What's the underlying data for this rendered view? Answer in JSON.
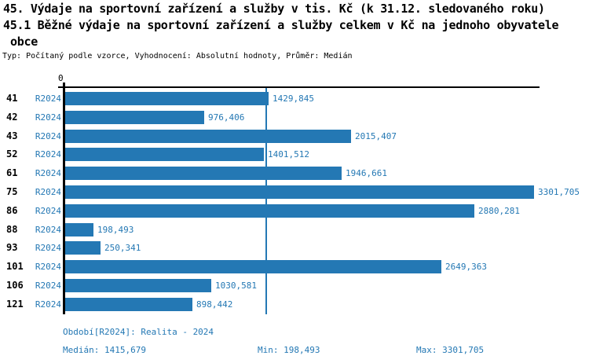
{
  "title": {
    "line1": "45. Výdaje na sportovní zařízení a služby v tis. Kč (k 31.12. sledovaného roku)",
    "line2": "45.1 Běžné výdaje na sportovní zařízení a služby celkem v Kč na jednoho obyvatele",
    "line3": "obce",
    "meta": "Typ: Počítaný podle vzorce, Vyhodnocení: Absolutní hodnoty, Průměr: Medián"
  },
  "chart_data": {
    "type": "bar",
    "orientation": "horizontal",
    "categories": [
      "41",
      "42",
      "43",
      "52",
      "61",
      "75",
      "86",
      "88",
      "93",
      "101",
      "106",
      "121"
    ],
    "series": [
      {
        "name": "R2024",
        "values": [
          1429.845,
          976.406,
          2015.407,
          1401.512,
          1946.661,
          3301.705,
          2880.281,
          198.493,
          250.341,
          2649.363,
          1030.581,
          898.442
        ],
        "value_labels": [
          "1429,845",
          "976,406",
          "2015,407",
          "1401,512",
          "1946,661",
          "3301,705",
          "2880,281",
          "198,493",
          "250,341",
          "2649,363",
          "1030,581",
          "898,442"
        ]
      }
    ],
    "xlim": [
      0,
      3340
    ],
    "zero_tick_label": "0",
    "median_value": 1415.679,
    "grid": "off",
    "bar_color": "#2478b4",
    "median_line_color": "#2478b4"
  },
  "footer": {
    "period": "Období[R2024]: Realita - 2024",
    "median": "Medián: 1415,679",
    "min": "Min: 198,493",
    "max": "Max: 3301,705"
  }
}
